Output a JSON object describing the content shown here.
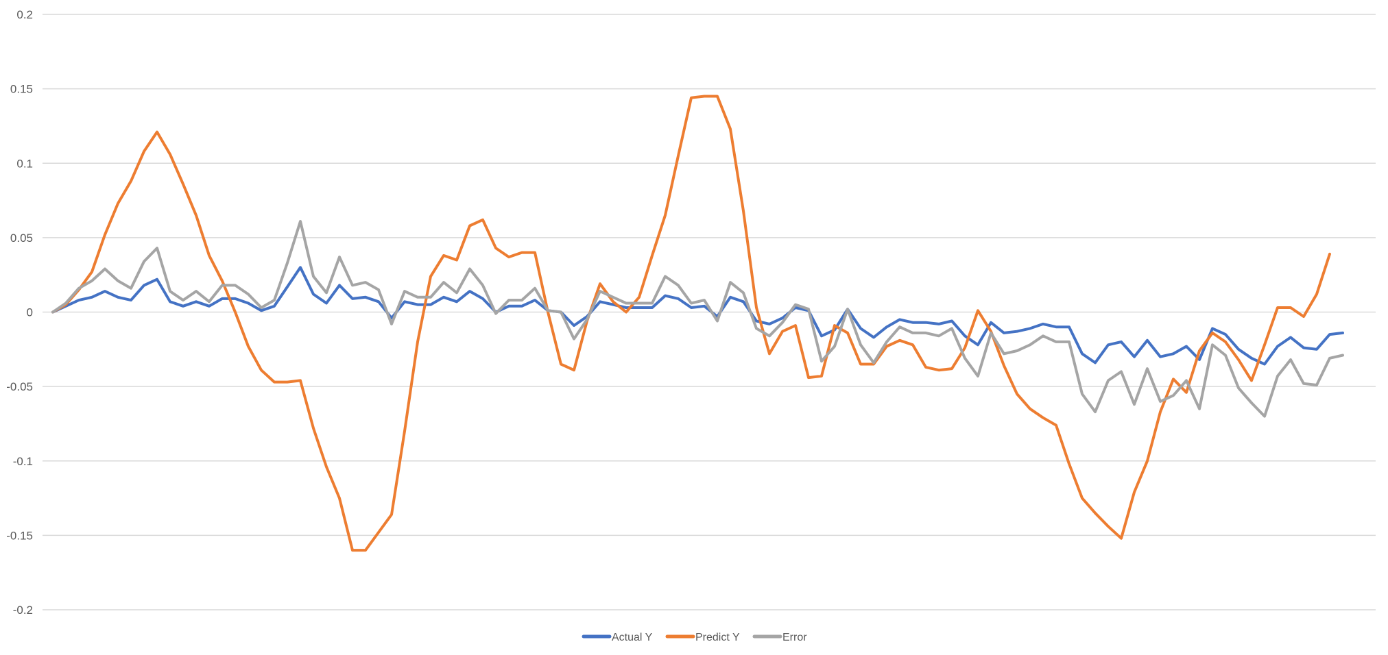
{
  "chart_data": {
    "type": "line",
    "title": "",
    "xlabel": "",
    "ylabel": "",
    "ylim": [
      -0.2,
      0.2
    ],
    "yticks": [
      0.2,
      0.15,
      0.1,
      0.05,
      0,
      -0.05,
      -0.1,
      -0.15,
      -0.2
    ],
    "ytick_labels": [
      "0.2",
      "0.15",
      "0.1",
      "0.05",
      "0",
      "-0.05",
      "-0.1",
      "-0.15",
      "-0.2"
    ],
    "grid": true,
    "legend": "bottom-center",
    "series": [
      {
        "name": "Actual Y",
        "color": "#4472C4",
        "values": [
          0,
          0.004,
          0.008,
          0.01,
          0.014,
          0.01,
          0.008,
          0.018,
          0.022,
          0.007,
          0.004,
          0.007,
          0.004,
          0.009,
          0.009,
          0.006,
          0.001,
          0.004,
          0.017,
          0.03,
          0.012,
          0.006,
          0.018,
          0.009,
          0.01,
          0.007,
          -0.004,
          0.007,
          0.005,
          0.005,
          0.01,
          0.007,
          0.014,
          0.009,
          0.0,
          0.004,
          0.004,
          0.008,
          0.001,
          0.0,
          -0.009,
          -0.003,
          0.007,
          0.005,
          0.003,
          0.003,
          0.003,
          0.011,
          0.009,
          0.003,
          0.004,
          -0.003,
          0.01,
          0.007,
          -0.006,
          -0.008,
          -0.004,
          0.003,
          0.001,
          -0.016,
          -0.012,
          0.002,
          -0.011,
          -0.017,
          -0.01,
          -0.005,
          -0.007,
          -0.007,
          -0.008,
          -0.006,
          -0.016,
          -0.022,
          -0.007,
          -0.014,
          -0.013,
          -0.011,
          -0.008,
          -0.01,
          -0.01,
          -0.028,
          -0.034,
          -0.022,
          -0.02,
          -0.03,
          -0.019,
          -0.03,
          -0.028,
          -0.023,
          -0.032,
          -0.011,
          -0.015,
          -0.025,
          -0.031,
          -0.035,
          -0.023,
          -0.017,
          -0.024,
          -0.025,
          -0.015,
          -0.014
        ]
      },
      {
        "name": "Predict Y",
        "color": "#ED7D31",
        "values": [
          0,
          0.005,
          0.015,
          0.027,
          0.052,
          0.073,
          0.088,
          0.108,
          0.121,
          0.106,
          0.086,
          0.065,
          0.038,
          0.021,
          0.0,
          -0.023,
          -0.039,
          -0.047,
          -0.047,
          -0.046,
          -0.078,
          -0.104,
          -0.125,
          -0.16,
          -0.16,
          -0.148,
          -0.136,
          -0.08,
          -0.02,
          0.024,
          0.038,
          0.035,
          0.058,
          0.062,
          0.043,
          0.037,
          0.04,
          0.04,
          0.0,
          -0.035,
          -0.039,
          -0.006,
          0.019,
          0.007,
          0.0,
          0.01,
          0.038,
          0.065,
          0.105,
          0.144,
          0.145,
          0.145,
          0.123,
          0.068,
          0.003,
          -0.028,
          -0.013,
          -0.009,
          -0.044,
          -0.043,
          -0.009,
          -0.014,
          -0.035,
          -0.035,
          -0.023,
          -0.019,
          -0.022,
          -0.037,
          -0.039,
          -0.038,
          -0.024,
          0.001,
          -0.013,
          -0.036,
          -0.055,
          -0.065,
          -0.071,
          -0.076,
          -0.102,
          -0.125,
          -0.135,
          -0.144,
          -0.152,
          -0.121,
          -0.1,
          -0.067,
          -0.045,
          -0.054,
          -0.026,
          -0.014,
          -0.02,
          -0.032,
          -0.046,
          -0.022,
          0.003,
          0.003,
          -0.003,
          0.012,
          0.039
        ]
      },
      {
        "name": "Error",
        "color": "#A5A5A5",
        "values": [
          0,
          0.006,
          0.016,
          0.021,
          0.029,
          0.021,
          0.016,
          0.034,
          0.043,
          0.014,
          0.008,
          0.014,
          0.007,
          0.018,
          0.018,
          0.012,
          0.003,
          0.008,
          0.033,
          0.061,
          0.024,
          0.013,
          0.037,
          0.018,
          0.02,
          0.015,
          -0.008,
          0.014,
          0.01,
          0.01,
          0.02,
          0.013,
          0.029,
          0.018,
          -0.001,
          0.008,
          0.008,
          0.016,
          0.001,
          0.0,
          -0.018,
          -0.005,
          0.014,
          0.01,
          0.006,
          0.006,
          0.006,
          0.024,
          0.018,
          0.006,
          0.008,
          -0.006,
          0.02,
          0.013,
          -0.011,
          -0.016,
          -0.007,
          0.005,
          0.002,
          -0.033,
          -0.023,
          0.002,
          -0.022,
          -0.034,
          -0.02,
          -0.01,
          -0.014,
          -0.014,
          -0.016,
          -0.011,
          -0.031,
          -0.043,
          -0.014,
          -0.028,
          -0.026,
          -0.022,
          -0.016,
          -0.02,
          -0.02,
          -0.055,
          -0.067,
          -0.046,
          -0.04,
          -0.062,
          -0.038,
          -0.06,
          -0.056,
          -0.046,
          -0.065,
          -0.022,
          -0.029,
          -0.051,
          -0.061,
          -0.07,
          -0.043,
          -0.032,
          -0.048,
          -0.049,
          -0.031,
          -0.029
        ]
      }
    ]
  }
}
